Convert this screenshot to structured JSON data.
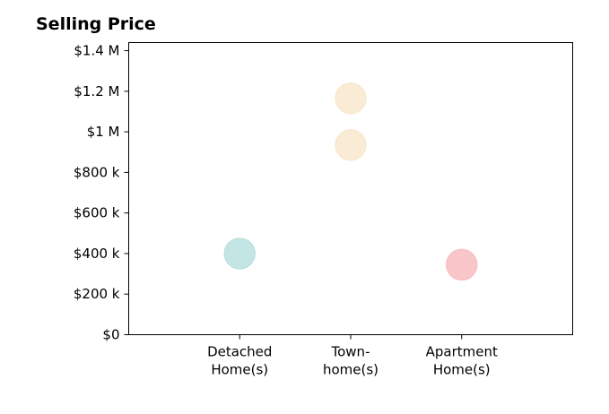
{
  "chart_data": {
    "type": "scatter",
    "title": "Selling Price",
    "xlabel": "",
    "ylabel": "",
    "categories": [
      [
        "Detached",
        "Home(s)"
      ],
      [
        "Town-",
        "home(s)"
      ],
      [
        "Apartment",
        "Home(s)"
      ]
    ],
    "ylim": [
      0,
      1440000
    ],
    "y_ticks": [
      {
        "value": 0,
        "label": "$0"
      },
      {
        "value": 200000,
        "label": "$200 k"
      },
      {
        "value": 400000,
        "label": "$400 k"
      },
      {
        "value": 600000,
        "label": "$600 k"
      },
      {
        "value": 800000,
        "label": "$800 k"
      },
      {
        "value": 1000000,
        "label": "$1 M"
      },
      {
        "value": 1200000,
        "label": "$1.2 M"
      },
      {
        "value": 1400000,
        "label": "$1.4 M"
      }
    ],
    "points": [
      {
        "category": 0,
        "value": 400000,
        "color": "#bde2e0"
      },
      {
        "category": 1,
        "value": 1165000,
        "color": "#f8e9cf"
      },
      {
        "category": 1,
        "value": 935000,
        "color": "#f8e9cf"
      },
      {
        "category": 2,
        "value": 345000,
        "color": "#f8c0c3"
      }
    ],
    "grid": false,
    "legend": "none"
  }
}
